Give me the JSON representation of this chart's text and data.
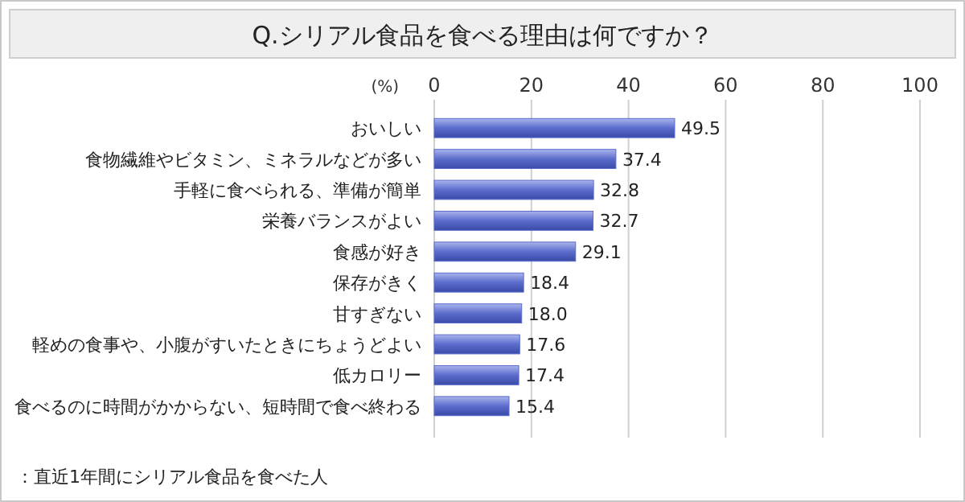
{
  "chart_data": {
    "type": "bar",
    "orientation": "horizontal",
    "title": "Q.シリアル食品を食べる理由は何ですか？",
    "xlabel": "(%)",
    "categories": [
      "おいしい",
      "食物繊維やビタミン、ミネラルなどが多い",
      "手軽に食べられる、準備が簡単",
      "栄養バランスがよい",
      "食感が好き",
      "保存がきく",
      "甘すぎない",
      "軽めの食事や、小腹がすいたときにちょうどよい",
      "低カロリー",
      "食べるのに時間がかからない、短時間で食べ終わる"
    ],
    "values": [
      49.5,
      37.4,
      32.8,
      32.7,
      29.1,
      18.4,
      18.0,
      17.6,
      17.4,
      15.4
    ],
    "color": "#5b6ccc",
    "xlim": [
      0,
      100
    ],
    "xticks": [
      0,
      20,
      40,
      60,
      80,
      100
    ],
    "grid": "x",
    "value_labels": [
      "49.5",
      "37.4",
      "32.8",
      "32.7",
      "29.1",
      "18.4",
      "18.0",
      "17.6",
      "17.4",
      "15.4"
    ],
    "annotations": [
      "：直近1年間にシリアル食品を食べた人"
    ]
  }
}
